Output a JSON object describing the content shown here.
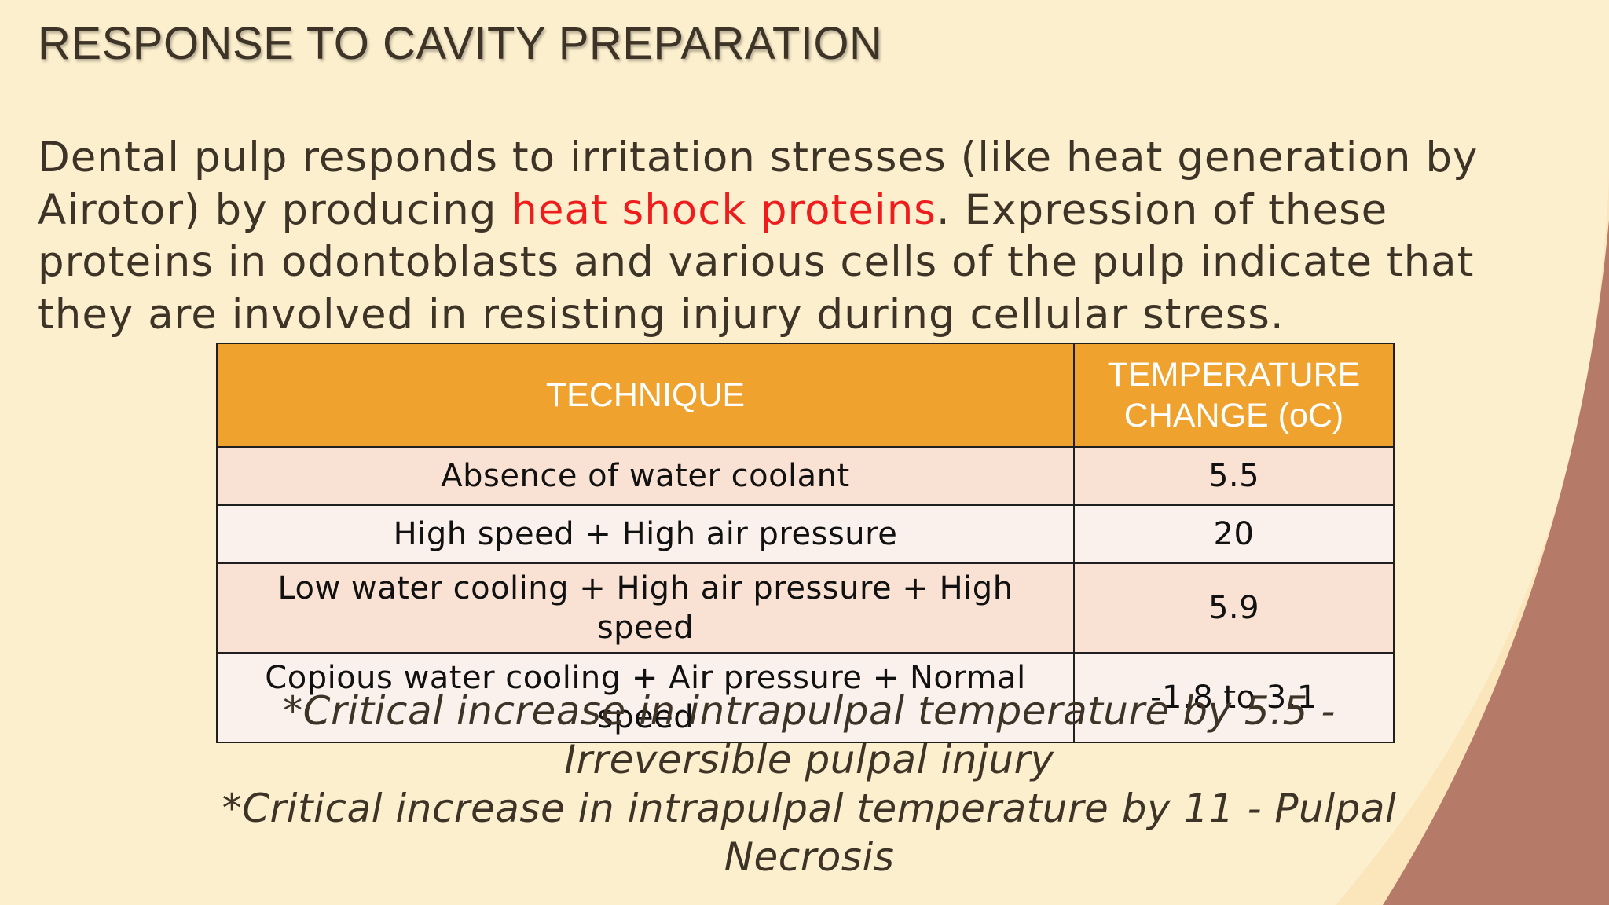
{
  "slide": {
    "title": "RESPONSE TO CAVITY PREPARATION",
    "paragraph": {
      "before": "Dental pulp responds to irritation stresses (like heat generation by Airotor) by producing ",
      "highlight": "heat shock proteins",
      "after": ". Expression of these proteins in odontoblasts and various cells of the pulp indicate that they are involved in resisting injury during cellular stress."
    },
    "colors": {
      "background": "#fcefcd",
      "highlight": "#ee1c1c",
      "header_fill": "#efa22e",
      "row_odd": "#f9e1d3",
      "row_even": "#fbf1ec",
      "corner_swoosh": "#b57a68"
    },
    "table": {
      "headers": [
        "TECHNIQUE",
        "TEMPERATURE CHANGE (oC)"
      ],
      "rows": [
        {
          "technique": "Absence of water coolant",
          "change": "5.5"
        },
        {
          "technique": "High speed + High air pressure",
          "change": "20"
        },
        {
          "technique": "Low water cooling + High air pressure + High speed",
          "change": "5.9"
        },
        {
          "technique": "Copious water cooling + Air pressure + Normal speed",
          "change": "-1.8 to 3.1"
        }
      ]
    },
    "notes": [
      "*Critical increase in intrapulpal temperature by 5.5 - Irreversible pulpal injury",
      "*Critical increase in intrapulpal temperature by 11 - Pulpal Necrosis"
    ]
  }
}
